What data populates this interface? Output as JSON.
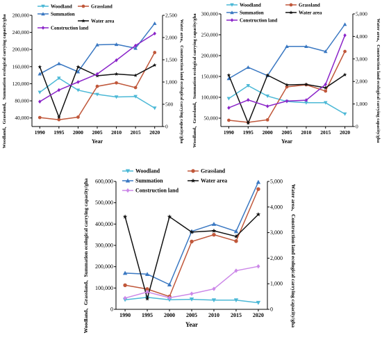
{
  "chart_data": [
    {
      "type": "line",
      "x": [
        1990,
        1995,
        2000,
        2005,
        2010,
        2015,
        2020
      ],
      "xlabel": "Year",
      "ylabel_left": "Woodland、Grassland、Summation ecological carrying capacity/gha",
      "ylabel_right": "Water area、Construction land ecological carrying capacity/gha",
      "ylim_left": [
        20000,
        280000
      ],
      "yticks_left": [
        "40,000",
        "80,000",
        "120,000",
        "160,000",
        "200,000",
        "240,000",
        "280,000"
      ],
      "ylim_right": [
        0,
        2500
      ],
      "yticks_right": [
        "0",
        "500",
        "1,000",
        "1,500",
        "2,000",
        "2,500"
      ],
      "legend": "top, three columns",
      "series": [
        {
          "name": "Woodland",
          "axis": "left",
          "color": "#4bb8d6",
          "marker": "triangle-down",
          "values": [
            100000,
            133000,
            105000,
            95000,
            89000,
            90000,
            63000
          ]
        },
        {
          "name": "Grassland",
          "axis": "left",
          "color": "#c0573a",
          "marker": "circle",
          "values": [
            41000,
            36000,
            42000,
            114000,
            122000,
            111000,
            193000
          ]
        },
        {
          "name": "Summation",
          "axis": "left",
          "color": "#3a78c2",
          "marker": "triangle-up",
          "values": [
            143000,
            167000,
            148000,
            211000,
            212000,
            203000,
            261000
          ]
        },
        {
          "name": "Water area",
          "axis": "right",
          "color": "#111111",
          "marker": "star",
          "values": [
            1340,
            210,
            1340,
            1140,
            1180,
            1150,
            1380
          ]
        },
        {
          "name": "Construction land",
          "axis": "right",
          "color": "#8b25c9",
          "marker": "diamond",
          "values": [
            560,
            820,
            1000,
            1180,
            1490,
            1820,
            2090
          ]
        }
      ]
    },
    {
      "type": "line",
      "x": [
        1990,
        1995,
        2000,
        2005,
        2010,
        2015,
        2020
      ],
      "xlabel": "Year",
      "ylabel_left": "Woodland、Grassland、Summation ecological carrying capacity/gha",
      "ylabel_right": "Water area、Construction land ecological carrying capacity/gha",
      "ylim_left": [
        30000,
        300000
      ],
      "yticks_left": [
        "50,000",
        "100,000",
        "150,000",
        "200,000",
        "250,000",
        "300,000"
      ],
      "ylim_right": [
        0,
        5000
      ],
      "yticks_right": [
        "0",
        "1,000",
        "2,000",
        "3,000",
        "4,000",
        "5,000"
      ],
      "legend": "top, two columns",
      "series": [
        {
          "name": "Woodland",
          "axis": "left",
          "color": "#4bb8d6",
          "marker": "triangle-down",
          "values": [
            97000,
            128000,
            103000,
            90000,
            87000,
            87000,
            60000
          ]
        },
        {
          "name": "Grassland",
          "axis": "left",
          "color": "#c0573a",
          "marker": "circle",
          "values": [
            45000,
            40000,
            46000,
            125000,
            130000,
            115000,
            210000
          ]
        },
        {
          "name": "Summation",
          "axis": "left",
          "color": "#3a78c2",
          "marker": "triangle-up",
          "values": [
            145000,
            172000,
            152000,
            222000,
            222000,
            210000,
            275000
          ]
        },
        {
          "name": "Water area",
          "axis": "right",
          "color": "#111111",
          "marker": "star",
          "values": [
            2280,
            150,
            2280,
            1850,
            1870,
            1720,
            2300
          ]
        },
        {
          "name": "Construction land",
          "axis": "right",
          "color": "#8b25c9",
          "marker": "diamond",
          "values": [
            830,
            1180,
            900,
            1130,
            1170,
            1870,
            4050
          ]
        }
      ]
    },
    {
      "type": "line",
      "x": [
        1990,
        1995,
        2000,
        2005,
        2010,
        2015,
        2020
      ],
      "xlabel": "Year",
      "ylabel_left": "Woodland、Grassland、Summation ecological carrying capacity/gha",
      "ylabel_right": "Water area、Construction land ecological carrying capacity/gha",
      "ylim_left": [
        0,
        600000
      ],
      "yticks_left": [
        "0",
        "100,000",
        "200,000",
        "300,000",
        "400,000",
        "500,000",
        "600,000"
      ],
      "ylim_right": [
        0,
        5000
      ],
      "yticks_right": [
        "0",
        "1,000",
        "2,000",
        "3,000",
        "4,000",
        "5,000"
      ],
      "legend": "top, two columns",
      "series": [
        {
          "name": "Woodland",
          "axis": "left",
          "color": "#4bb8d6",
          "marker": "triangle-down",
          "values": [
            45000,
            56000,
            45000,
            47000,
            43000,
            43000,
            31000
          ]
        },
        {
          "name": "Grassland",
          "axis": "left",
          "color": "#c0573a",
          "marker": "circle",
          "values": [
            113000,
            95000,
            60000,
            318000,
            350000,
            320000,
            564000
          ]
        },
        {
          "name": "Summation",
          "axis": "left",
          "color": "#3a78c2",
          "marker": "triangle-up",
          "values": [
            170000,
            165000,
            116000,
            366000,
            400000,
            366000,
            597000
          ]
        },
        {
          "name": "Water area",
          "axis": "right",
          "color": "#111111",
          "marker": "star",
          "values": [
            3620,
            420,
            3620,
            3020,
            3070,
            2850,
            3710
          ]
        },
        {
          "name": "Construction land",
          "axis": "right",
          "color": "#cc88e8",
          "marker": "diamond",
          "values": [
            440,
            680,
            450,
            610,
            800,
            1510,
            1680
          ]
        }
      ]
    }
  ]
}
